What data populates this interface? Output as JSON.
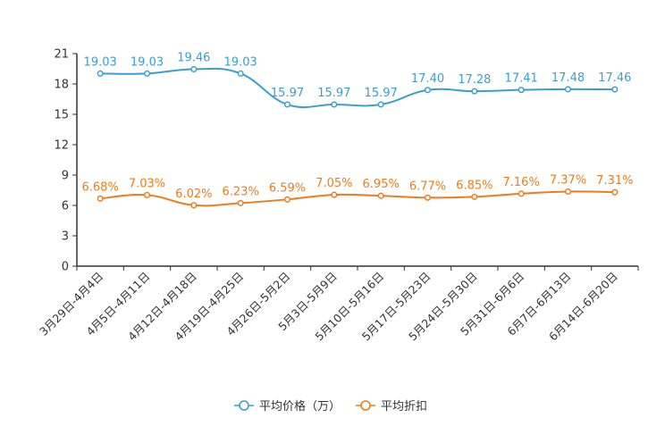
{
  "chart_data": {
    "type": "line",
    "title": "",
    "xlabel": "",
    "ylabel": "",
    "ylim": [
      0,
      21
    ],
    "yticks": [
      0,
      3,
      6,
      9,
      12,
      15,
      18,
      21
    ],
    "grid": false,
    "legend_position": "bottom-center",
    "categories": [
      "3月29日-4月4日",
      "4月5日-4月11日",
      "4月12日-4月18日",
      "4月19日-4月25日",
      "4月26日-5月2日",
      "5月3日-5月9日",
      "5月10日-5月16日",
      "5月17日-5月23日",
      "5月24日-5月30日",
      "5月31日-6月6日",
      "6月7日-6月13日",
      "6月14日-6月20日"
    ],
    "series": [
      {
        "name": "平均价格（万）",
        "color": "#3a9fd0",
        "values": [
          19.03,
          19.03,
          19.46,
          19.03,
          15.97,
          15.97,
          15.97,
          17.4,
          17.28,
          17.41,
          17.48,
          17.46
        ],
        "labels": [
          "19.03",
          "19.03",
          "19.46",
          "19.03",
          "15.97",
          "15.97",
          "15.97",
          "17.40",
          "17.28",
          "17.41",
          "17.48",
          "17.46"
        ]
      },
      {
        "name": "平均折扣",
        "color": "#f07b1a",
        "values": [
          6.68,
          7.03,
          6.02,
          6.23,
          6.59,
          7.05,
          6.95,
          6.77,
          6.85,
          7.16,
          7.37,
          7.31
        ],
        "labels": [
          "6.68%",
          "7.03%",
          "6.02%",
          "6.23%",
          "6.59%",
          "7.05%",
          "6.95%",
          "6.77%",
          "6.85%",
          "7.16%",
          "7.37%",
          "7.31%"
        ]
      }
    ]
  }
}
